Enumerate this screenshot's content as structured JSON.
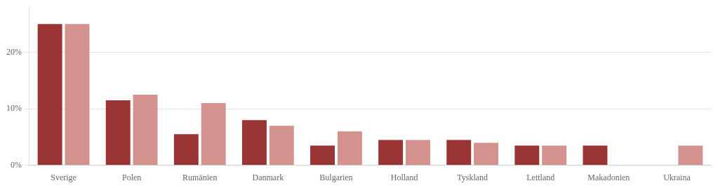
{
  "chart_data": {
    "type": "bar",
    "categories": [
      "Sverige",
      "Polen",
      "Rumänien",
      "Danmark",
      "Bulgarien",
      "Holland",
      "Tyskland",
      "Lettland",
      "Makadonien",
      "Ukraina"
    ],
    "series": [
      {
        "color": "#9b3535",
        "values": [
          25.0,
          11.5,
          5.5,
          8.0,
          3.5,
          4.5,
          4.5,
          3.5,
          3.5,
          0.0
        ]
      },
      {
        "color": "#d4928f",
        "values": [
          25.0,
          12.5,
          11.0,
          7.0,
          6.0,
          4.5,
          4.0,
          3.5,
          0.0,
          3.5
        ]
      }
    ],
    "ylim": [
      0,
      28
    ],
    "yticks": [
      {
        "value": 0,
        "label": "0%"
      },
      {
        "value": 10,
        "label": "10%"
      },
      {
        "value": 20,
        "label": "20%"
      }
    ],
    "grid": true
  }
}
